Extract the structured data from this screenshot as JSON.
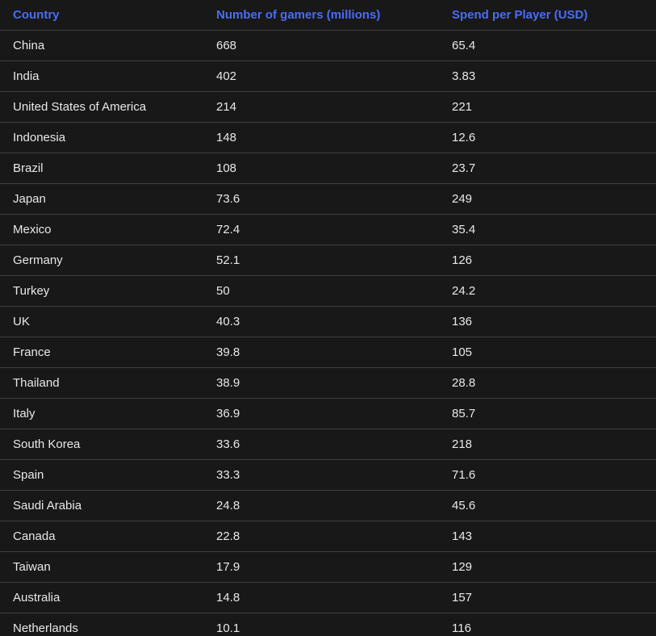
{
  "accent_color": "#4a6cf7",
  "background_color": "#181818",
  "row_divider_color": "#3f3f3f",
  "text_color": "#e8e8e8",
  "chart_data": {
    "type": "table",
    "title": "",
    "columns": [
      "Country",
      "Number of gamers (millions)",
      "Spend per Player (USD)"
    ],
    "rows": [
      [
        "China",
        "668",
        "65.4"
      ],
      [
        "India",
        "402",
        "3.83"
      ],
      [
        "United States of America",
        "214",
        "221"
      ],
      [
        "Indonesia",
        "148",
        "12.6"
      ],
      [
        "Brazil",
        "108",
        "23.7"
      ],
      [
        "Japan",
        "73.6",
        "249"
      ],
      [
        "Mexico",
        "72.4",
        "35.4"
      ],
      [
        "Germany",
        "52.1",
        "126"
      ],
      [
        "Turkey",
        "50",
        "24.2"
      ],
      [
        "UK",
        "40.3",
        "136"
      ],
      [
        "France",
        "39.8",
        "105"
      ],
      [
        "Thailand",
        "38.9",
        "28.8"
      ],
      [
        "Italy",
        "36.9",
        "85.7"
      ],
      [
        "South Korea",
        "33.6",
        "218"
      ],
      [
        "Spain",
        "33.3",
        "71.6"
      ],
      [
        "Saudi Arabia",
        "24.8",
        "45.6"
      ],
      [
        "Canada",
        "22.8",
        "143"
      ],
      [
        "Taiwan",
        "17.9",
        "129"
      ],
      [
        "Australia",
        "14.8",
        "157"
      ],
      [
        "Netherlands",
        "10.1",
        "116"
      ]
    ]
  }
}
